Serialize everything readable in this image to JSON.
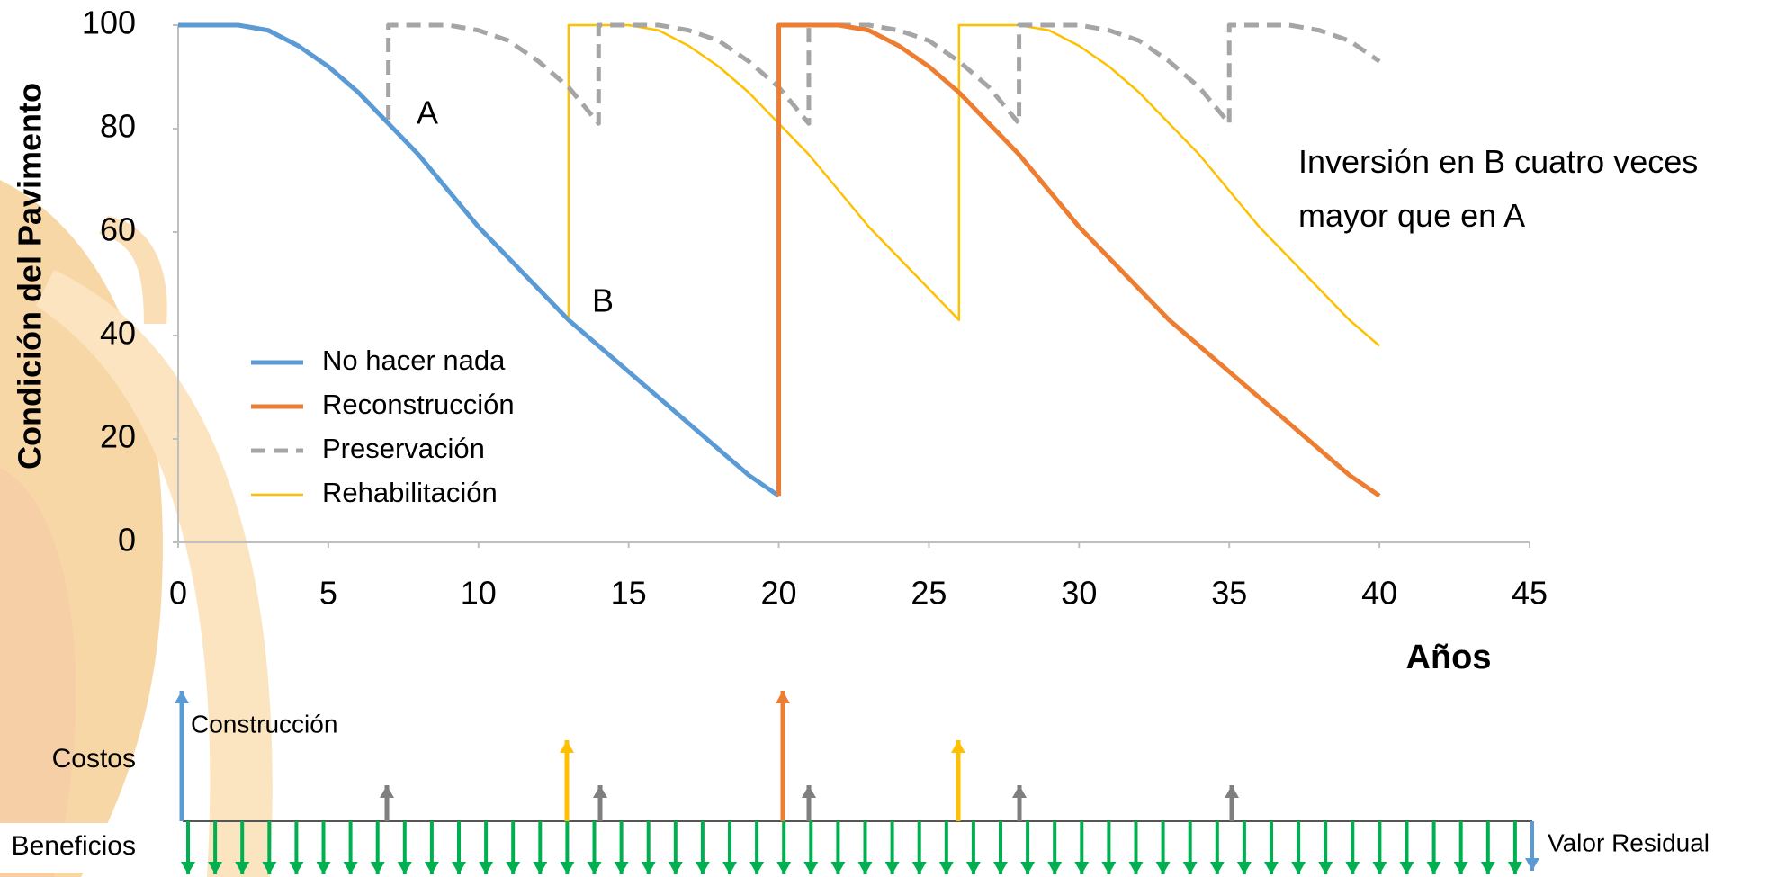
{
  "chart_data": {
    "type": "line",
    "y_label": "Condición del Pavimento",
    "x_label": "Años",
    "xlim": [
      0,
      45
    ],
    "xticks": [
      0,
      5,
      10,
      15,
      20,
      25,
      30,
      35,
      40,
      45
    ],
    "ylim": [
      0,
      100
    ],
    "yticks": [
      0,
      20,
      40,
      60,
      80,
      100
    ],
    "legend": "lower-left",
    "series": [
      {
        "name": "No hacer nada",
        "color": "#5b9bd5",
        "dashed": false,
        "x": [
          0,
          1,
          2,
          3,
          4,
          5,
          6,
          7,
          8,
          9,
          10,
          11,
          12,
          13,
          14,
          15,
          16,
          17,
          18,
          19,
          20
        ],
        "values": [
          100,
          100,
          100,
          99,
          96,
          92,
          87,
          81,
          75,
          68,
          61,
          55,
          49,
          43,
          38,
          33,
          28,
          23,
          18,
          13,
          9
        ]
      },
      {
        "name": "Reconstrucción",
        "color": "#ed7d31",
        "dashed": false,
        "x": [
          20,
          20,
          21,
          22,
          23,
          24,
          25,
          26,
          27,
          28,
          29,
          30,
          31,
          32,
          33,
          34,
          35,
          36,
          37,
          38,
          39,
          40
        ],
        "values": [
          9,
          100,
          100,
          100,
          99,
          96,
          92,
          87,
          81,
          75,
          68,
          61,
          55,
          49,
          43,
          38,
          33,
          28,
          23,
          18,
          13,
          9
        ]
      },
      {
        "name": "Preservación",
        "color": "#a5a5a5",
        "dashed": true,
        "x": [
          0,
          1,
          2,
          3,
          4,
          5,
          6,
          7,
          7,
          8,
          9,
          10,
          11,
          12,
          13,
          14,
          14,
          15,
          16,
          17,
          18,
          19,
          20,
          21,
          21,
          22,
          23,
          24,
          25,
          26,
          27,
          28,
          28,
          29,
          30,
          31,
          32,
          33,
          34,
          35,
          35,
          36,
          37,
          38,
          39,
          40
        ],
        "values": [
          100,
          100,
          100,
          99,
          96,
          92,
          87,
          81,
          100,
          100,
          100,
          99,
          97,
          93,
          88,
          81,
          100,
          100,
          100,
          99,
          97,
          93,
          88,
          81,
          100,
          100,
          100,
          99,
          97,
          93,
          88,
          81,
          100,
          100,
          100,
          99,
          97,
          93,
          88,
          81,
          100,
          100,
          100,
          99,
          97,
          93
        ]
      },
      {
        "name": "Rehabilitación",
        "color": "#ffc000",
        "dashed": false,
        "x": [
          0,
          1,
          2,
          3,
          4,
          5,
          6,
          7,
          8,
          9,
          10,
          11,
          12,
          13,
          13,
          14,
          15,
          16,
          17,
          18,
          19,
          20,
          21,
          22,
          23,
          24,
          25,
          26,
          26,
          27,
          28,
          29,
          30,
          31,
          32,
          33,
          34,
          35,
          36,
          37,
          38,
          39,
          40
        ],
        "values": [
          100,
          100,
          100,
          99,
          96,
          92,
          87,
          81,
          75,
          68,
          61,
          55,
          49,
          43,
          100,
          100,
          100,
          99,
          96,
          92,
          87,
          81,
          75,
          68,
          61,
          55,
          49,
          43,
          100,
          100,
          100,
          99,
          96,
          92,
          87,
          81,
          75,
          68,
          61,
          55,
          49,
          43,
          38
        ]
      }
    ],
    "annotations": [
      "A",
      "B",
      "Inversión en B cuatro veces mayor que en A"
    ],
    "cash_flow": {
      "costs_label": "Costos",
      "benefits_label": "Beneficios",
      "construction_label": "Construcción",
      "residual_label": "Valor Residual"
    }
  }
}
